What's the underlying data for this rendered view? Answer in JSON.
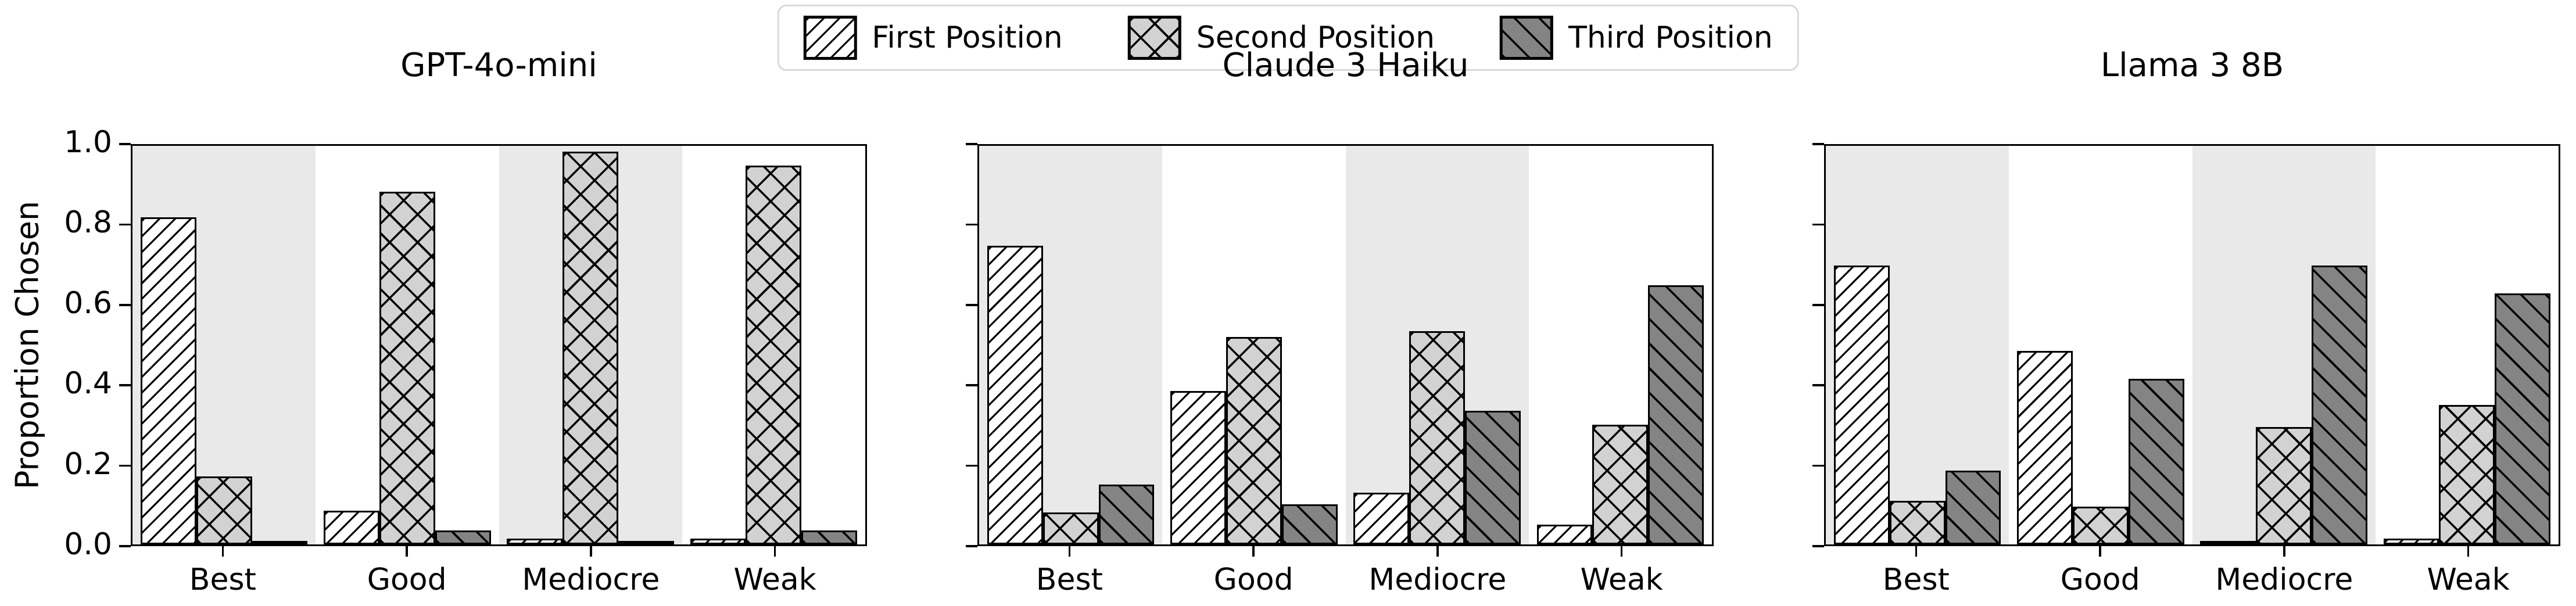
{
  "legend": {
    "items": [
      {
        "label": "First Position",
        "swatch": "diagonal-forward-hatch"
      },
      {
        "label": "Second Position",
        "swatch": "crosshatch"
      },
      {
        "label": "Third Position",
        "swatch": "diagonal-back-hatch"
      }
    ]
  },
  "axes": {
    "ylabel": "Proportion Chosen",
    "yticks": [
      "0.0",
      "0.2",
      "0.4",
      "0.6",
      "0.8",
      "1.0"
    ]
  },
  "colors": {
    "first_fill": "#ffffff",
    "second_fill": "#d2d2d2",
    "third_fill": "#848484",
    "band_gray": "#e9e9e9",
    "edge": "#000000",
    "legend_border": "#d9d9d9"
  },
  "chart_data": [
    {
      "type": "bar",
      "title": "GPT-4o-mini",
      "categories": [
        "Best",
        "Good",
        "Mediocre",
        "Weak"
      ],
      "series": [
        {
          "name": "First Position",
          "values": [
            0.82,
            0.085,
            0.015,
            0.015
          ]
        },
        {
          "name": "Second Position",
          "values": [
            0.17,
            0.885,
            0.985,
            0.95
          ]
        },
        {
          "name": "Third Position",
          "values": [
            0.005,
            0.035,
            0.005,
            0.035
          ]
        }
      ],
      "xlabel": "",
      "ylabel": "Proportion Chosen",
      "ylim": [
        0.0,
        1.0
      ],
      "grid": false,
      "band_shading": "alternating-gray-white"
    },
    {
      "type": "bar",
      "title": "Claude 3 Haiku",
      "categories": [
        "Best",
        "Good",
        "Mediocre",
        "Weak"
      ],
      "series": [
        {
          "name": "First Position",
          "values": [
            0.75,
            0.385,
            0.13,
            0.05
          ]
        },
        {
          "name": "Second Position",
          "values": [
            0.08,
            0.52,
            0.535,
            0.3
          ]
        },
        {
          "name": "Third Position",
          "values": [
            0.15,
            0.1,
            0.335,
            0.65
          ]
        }
      ],
      "xlabel": "",
      "ylabel": "",
      "ylim": [
        0.0,
        1.0
      ],
      "grid": false,
      "band_shading": "alternating-gray-white"
    },
    {
      "type": "bar",
      "title": "Llama 3 8B",
      "categories": [
        "Best",
        "Good",
        "Mediocre",
        "Weak"
      ],
      "series": [
        {
          "name": "First Position",
          "values": [
            0.7,
            0.485,
            0.005,
            0.015
          ]
        },
        {
          "name": "Second Position",
          "values": [
            0.11,
            0.095,
            0.295,
            0.35
          ]
        },
        {
          "name": "Third Position",
          "values": [
            0.185,
            0.415,
            0.7,
            0.63
          ]
        }
      ],
      "xlabel": "",
      "ylabel": "",
      "ylim": [
        0.0,
        1.0
      ],
      "grid": false,
      "band_shading": "alternating-gray-white"
    }
  ],
  "legend_position": "top-center"
}
